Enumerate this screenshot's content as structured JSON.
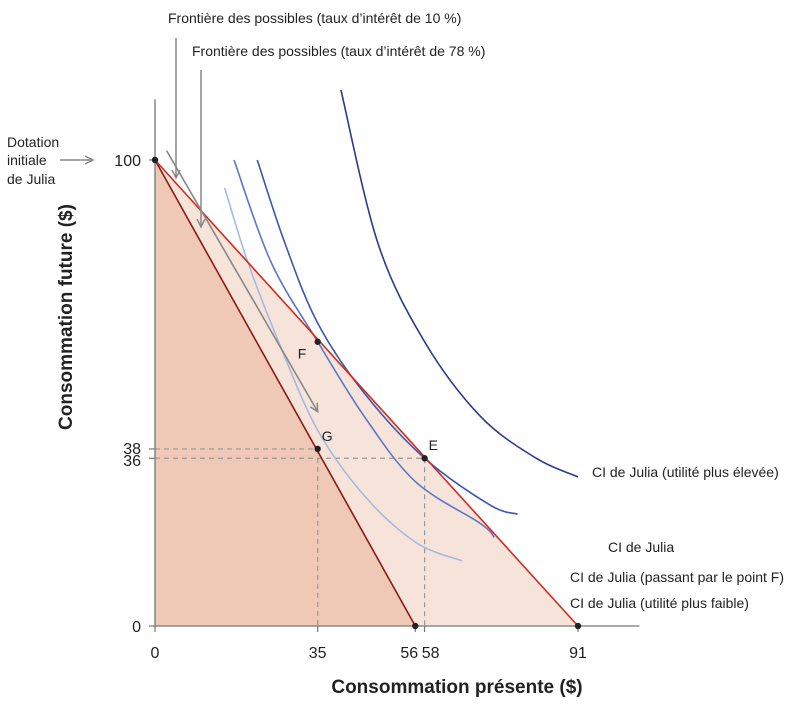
{
  "chart_data": {
    "type": "line",
    "xlabel": "Consommation présente ($)",
    "ylabel": "Consommation future ($)",
    "xlim": [
      0,
      101
    ],
    "ylim": [
      0,
      113
    ],
    "x_ticks": [
      {
        "value": 0,
        "label": "0"
      },
      {
        "value": 35,
        "label": "35"
      },
      {
        "value": 56,
        "label": "56"
      },
      {
        "value": 58,
        "label": "58"
      },
      {
        "value": 91,
        "label": "91"
      }
    ],
    "y_ticks": [
      {
        "value": 0,
        "label": "0"
      },
      {
        "value": 36,
        "label": "36"
      },
      {
        "value": 38,
        "label": "38"
      },
      {
        "value": 100,
        "label": "100"
      }
    ],
    "frontiers": [
      {
        "label": "Frontière des possibles (taux d’intérêt de 10 %)",
        "x": [
          0,
          91
        ],
        "y": [
          100,
          0
        ],
        "color": "#d42a1e"
      },
      {
        "label": "Frontière des possibles (taux d’intérêt de 78 %)",
        "x": [
          0,
          56
        ],
        "y": [
          100,
          0
        ],
        "color": "#8b1a12"
      }
    ],
    "indifference_curves": [
      {
        "label": "CI de Julia (utilité plus élevée)",
        "color": "#2a3a8c",
        "x": [
          40,
          48,
          58,
          70,
          82,
          91
        ],
        "y": [
          115,
          82,
          61,
          45,
          36,
          32
        ]
      },
      {
        "label": "CI de Julia",
        "color": "#3a57b0",
        "x": [
          22,
          28,
          35,
          45,
          58,
          72,
          78
        ],
        "y": [
          100,
          82,
          65,
          50,
          36,
          26,
          24
        ]
      },
      {
        "label": "CI de Julia (passant par le point F)",
        "color": "#5b78c7",
        "x": [
          17,
          25,
          35,
          45,
          56,
          70,
          73
        ],
        "y": [
          100,
          78,
          61,
          45,
          31,
          22,
          19
        ]
      },
      {
        "label": "CI de Julia (utilité plus faible)",
        "color": "#a6b9e2",
        "x": [
          15,
          20,
          27,
          35,
          45,
          56,
          66
        ],
        "y": [
          94,
          78,
          60,
          42,
          28,
          18,
          14
        ]
      }
    ],
    "points": [
      {
        "label": "E",
        "x": 58,
        "y": 36
      },
      {
        "label": "F",
        "x": 35,
        "y": 61
      },
      {
        "label": "G",
        "x": 35,
        "y": 38
      }
    ],
    "endpoints": [
      {
        "x": 0,
        "y": 100
      },
      {
        "x": 56,
        "y": 0
      },
      {
        "x": 91,
        "y": 0
      }
    ],
    "annotations": {
      "endowment": [
        "Dotation",
        "initiale",
        "de Julia"
      ]
    },
    "rotation_arrow": {
      "from": [
        2.5,
        102
      ],
      "to": [
        35,
        46
      ]
    }
  }
}
